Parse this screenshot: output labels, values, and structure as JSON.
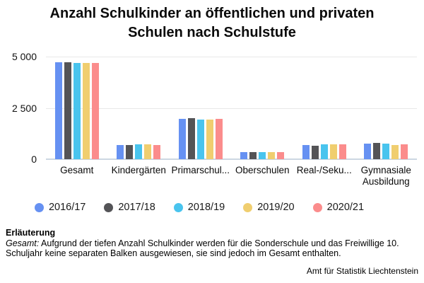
{
  "title": "Anzahl Schulkinder an öffentlichen und privaten Schulen nach Schulstufe",
  "chart_data": {
    "type": "bar",
    "title": "Anzahl Schulkinder an öffentlichen und privaten Schulen nach Schulstufe",
    "categories": [
      "Gesamt",
      "Kindergärten",
      "Primarschul...",
      "Oberschulen",
      "Real-/Seku...",
      "Gymnasiale Ausbildung"
    ],
    "series": [
      {
        "name": "2016/17",
        "color": "#6691f2",
        "values": [
          4720,
          700,
          1975,
          340,
          680,
          770
        ]
      },
      {
        "name": "2017/18",
        "color": "#545457",
        "values": [
          4710,
          685,
          2000,
          355,
          650,
          780
        ]
      },
      {
        "name": "2018/19",
        "color": "#49c4ee",
        "values": [
          4700,
          735,
          1945,
          345,
          715,
          750
        ]
      },
      {
        "name": "2019/20",
        "color": "#f0ce6f",
        "values": [
          4695,
          735,
          1945,
          335,
          715,
          690
        ]
      },
      {
        "name": "2020/21",
        "color": "#fb8c8c",
        "values": [
          4690,
          705,
          1955,
          355,
          740,
          710
        ]
      }
    ],
    "xlabel": "",
    "ylabel": "",
    "ylim": [
      0,
      5000
    ],
    "yticks": [
      {
        "value": 5000,
        "label": "5 000"
      },
      {
        "value": 2500,
        "label": "2 500"
      },
      {
        "value": 0,
        "label": "0"
      }
    ],
    "grid": true,
    "legend_position": "bottom"
  },
  "footer": {
    "heading": "Erläuterung",
    "note_prefix": "Gesamt:",
    "note_text": " Aufgrund der tiefen Anzahl Schulkinder werden für die Sonderschule und das Freiwillige 10. Schuljahr keine separaten Balken ausgewiesen, sie sind jedoch im Gesamt enthalten.",
    "source": "Amt für Statistik Liechtenstein"
  },
  "colors": {
    "gridline": "#e8e8e8",
    "baseline": "#ccd7e2",
    "text": "#000000"
  }
}
